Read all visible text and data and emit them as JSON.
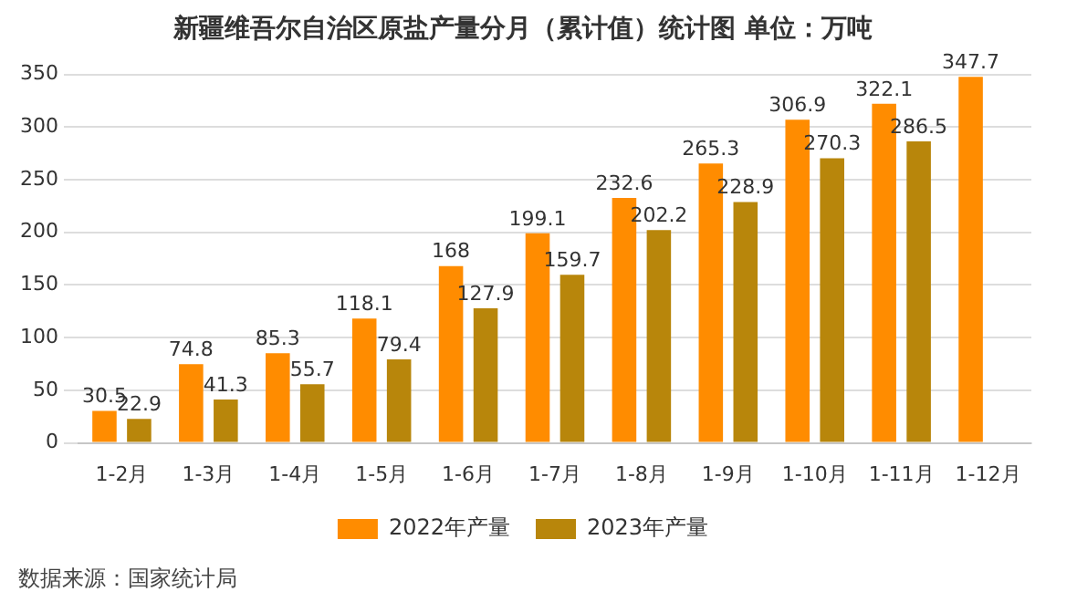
{
  "chart_data": {
    "type": "bar",
    "title": "新疆维吾尔自治区原盐产量分月（累计值）统计图 单位：万吨",
    "categories": [
      "1-2月",
      "1-3月",
      "1-4月",
      "1-5月",
      "1-6月",
      "1-7月",
      "1-8月",
      "1-9月",
      "1-10月",
      "1-11月",
      "1-12月"
    ],
    "series": [
      {
        "name": "2022年产量",
        "color": "#ff8c00",
        "values": [
          30.5,
          74.8,
          85.3,
          118.1,
          168,
          199.1,
          232.6,
          265.3,
          306.9,
          322.1,
          347.7
        ]
      },
      {
        "name": "2023年产量",
        "color": "#b8860b",
        "values": [
          22.9,
          41.3,
          55.7,
          79.4,
          127.9,
          159.7,
          202.2,
          228.9,
          270.3,
          286.5,
          null
        ]
      }
    ],
    "ylim": [
      0,
      350
    ],
    "yticks": [
      0,
      50,
      100,
      150,
      200,
      250,
      300,
      350
    ],
    "grid": "y",
    "legend": "bottom",
    "data_labels": true,
    "annotations": [
      "数据来源：国家统计局"
    ]
  }
}
